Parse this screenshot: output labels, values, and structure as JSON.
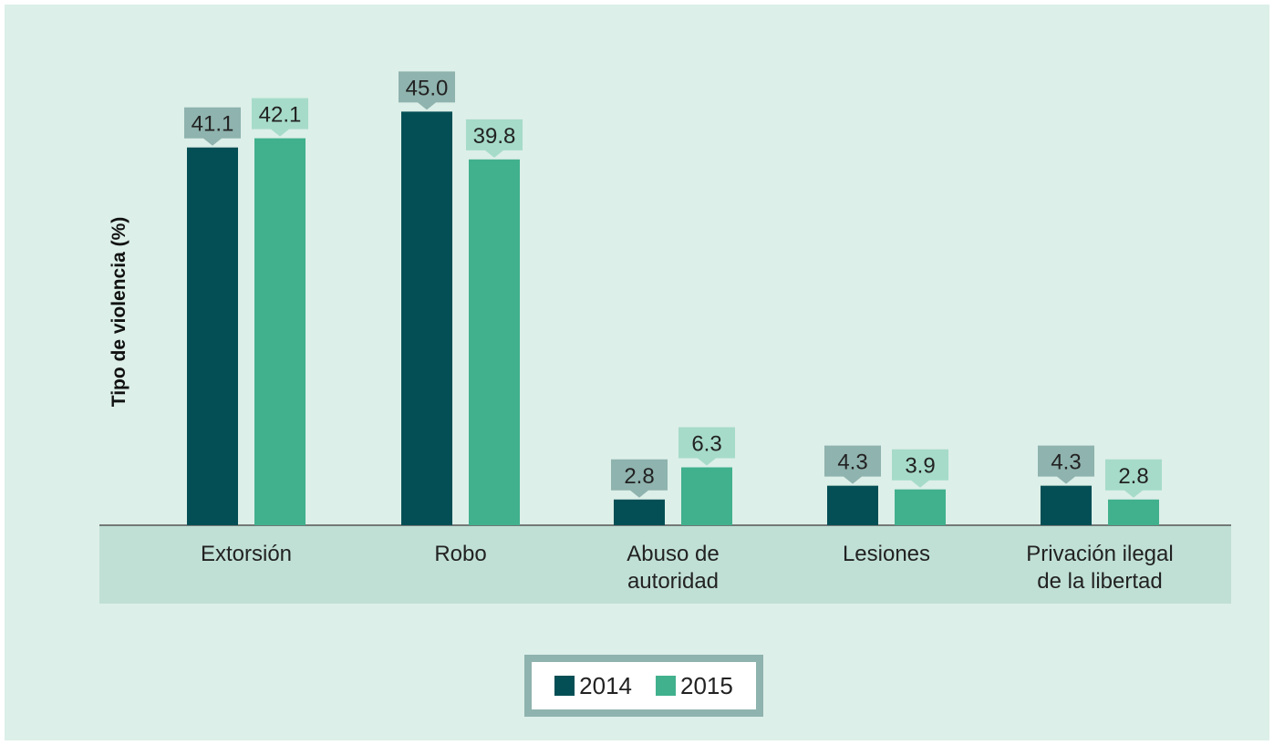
{
  "chart_data": {
    "type": "bar",
    "ylabel": "Tipo de violencia (%)",
    "categories": [
      [
        "Extorsión"
      ],
      [
        "Robo"
      ],
      [
        "Abuso de",
        "autoridad"
      ],
      [
        "Lesiones"
      ],
      [
        "Privación ilegal",
        "de la libertad"
      ]
    ],
    "series": [
      {
        "name": "2014",
        "values": [
          41.1,
          45.0,
          2.8,
          4.3,
          4.3
        ],
        "labels": [
          "41.1",
          "45.0",
          "2.8",
          "4.3",
          "4.3"
        ],
        "color": "#044f55",
        "label_color": "#8fb3ae"
      },
      {
        "name": "2015",
        "values": [
          42.1,
          39.8,
          6.3,
          3.9,
          2.8
        ],
        "labels": [
          "42.1",
          "39.8",
          "6.3",
          "3.9",
          "2.8"
        ],
        "color": "#41b08d",
        "label_color": "#a6dbc9"
      }
    ],
    "grid": false,
    "legend_position": "bottom-center",
    "colors": {
      "background": "#dcefe8",
      "axis_band": "#c0e0d6",
      "axis_line": "#555555"
    }
  }
}
